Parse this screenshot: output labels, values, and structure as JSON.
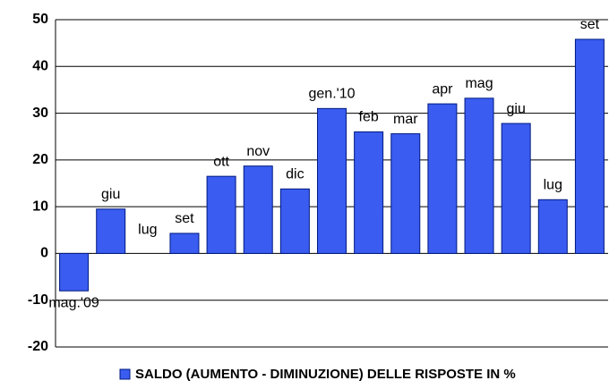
{
  "chart_data": {
    "type": "bar",
    "categories": [
      "mag.'09",
      "giu",
      "lug",
      "set",
      "ott",
      "nov",
      "dic",
      "gen.'10",
      "feb",
      "mar",
      "apr",
      "mag",
      "giu",
      "lug",
      "set"
    ],
    "series": [
      {
        "name": "SALDO (AUMENTO - DIMINUZIONE) DELLE RISPOSTE IN %",
        "color": "#3a5cf0",
        "values": [
          -8,
          9.5,
          0,
          4.3,
          16.5,
          18.7,
          13.8,
          31,
          26,
          25.6,
          32,
          33.2,
          27.8,
          11.5,
          45.8
        ]
      }
    ],
    "ylim": [
      -20,
      50
    ],
    "yticks": [
      -20,
      -10,
      0,
      10,
      20,
      30,
      40,
      50
    ],
    "grid": true,
    "legend": "bottom"
  }
}
